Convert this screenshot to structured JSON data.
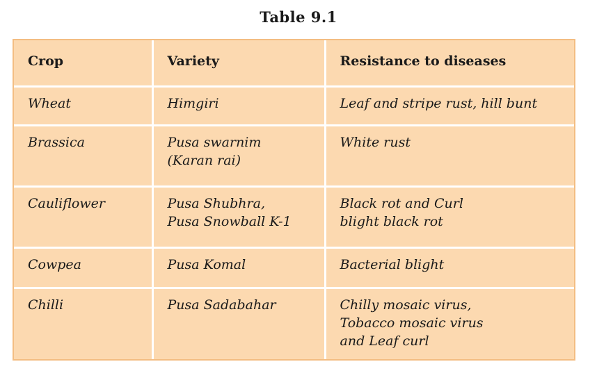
{
  "title": "Table 9.1",
  "headers": {
    "crop": "Crop",
    "variety": "Variety",
    "resistance": "Resistance to diseases"
  },
  "rows": [
    {
      "crop": "Wheat",
      "variety": [
        "Himgiri"
      ],
      "resistance": [
        "Leaf and stripe rust, hill bunt"
      ]
    },
    {
      "crop": "Brassica",
      "variety": [
        "Pusa swarnim",
        "(Karan rai)"
      ],
      "resistance": [
        "White rust"
      ]
    },
    {
      "crop": "Cauliflower",
      "variety": [
        "Pusa Shubhra,",
        "Pusa Snowball K-1"
      ],
      "resistance": [
        "Black rot and Curl",
        "blight black rot"
      ]
    },
    {
      "crop": "Cowpea",
      "variety": [
        "Pusa Komal"
      ],
      "resistance": [
        "Bacterial blight"
      ]
    },
    {
      "crop": "Chilli",
      "variety": [
        "Pusa Sadabahar"
      ],
      "resistance": [
        "Chilly mosaic virus,",
        "Tobacco mosaic virus",
        "and Leaf curl"
      ]
    }
  ]
}
